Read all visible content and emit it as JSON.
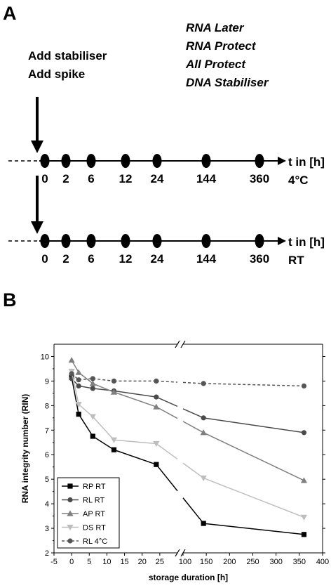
{
  "panel_a": {
    "letter": "A",
    "actions": [
      "Add stabiliser",
      "Add spike"
    ],
    "stabilisers": [
      "RNA Later",
      "RNA Protect",
      "All Protect",
      "DNA Stabiliser"
    ],
    "timelines": [
      {
        "axis_label": "t in [h]",
        "condition": "4°C",
        "points": [
          "0",
          "2",
          "6",
          "12",
          "24",
          "144",
          "360"
        ]
      },
      {
        "axis_label": "t in [h]",
        "condition": "RT",
        "points": [
          "0",
          "2",
          "6",
          "12",
          "24",
          "144",
          "360"
        ]
      }
    ]
  },
  "panel_b": {
    "letter": "B"
  },
  "chart_data": {
    "type": "line",
    "xlabel": "storage duration [h]",
    "ylabel": "RNA integrity number (RIN)",
    "x_axis": "broken",
    "x_segment_1": {
      "range": [
        -5,
        30
      ],
      "ticks": [
        -5,
        0,
        5,
        10,
        15,
        20,
        25
      ]
    },
    "x_segment_2": {
      "range": [
        100,
        400
      ],
      "ticks": [
        100,
        150,
        200,
        250,
        300,
        350,
        400
      ]
    },
    "ylim": [
      2,
      10.5
    ],
    "yticks": [
      2,
      3,
      4,
      5,
      6,
      7,
      8,
      9,
      10
    ],
    "legend_position": "bottom-left",
    "x": [
      0,
      2,
      6,
      12,
      24,
      144,
      360
    ],
    "series": [
      {
        "name": "RP RT",
        "marker": "square",
        "color": "#000000",
        "dash": false,
        "values": [
          9.15,
          7.65,
          6.75,
          6.2,
          5.6,
          3.2,
          2.75
        ]
      },
      {
        "name": "RL RT",
        "marker": "circle",
        "color": "#4a4a4a",
        "dash": false,
        "values": [
          9.1,
          8.8,
          8.7,
          8.6,
          8.35,
          7.5,
          6.9
        ]
      },
      {
        "name": "AP RT",
        "marker": "triangle-up",
        "color": "#7f7f7f",
        "dash": false,
        "values": [
          9.85,
          9.35,
          8.9,
          8.55,
          7.95,
          6.9,
          4.95
        ]
      },
      {
        "name": "DS RT",
        "marker": "triangle-down",
        "color": "#bdbdbd",
        "dash": false,
        "values": [
          9.4,
          8.05,
          7.55,
          6.6,
          6.45,
          5.05,
          3.45
        ]
      },
      {
        "name": "RL 4°C",
        "marker": "circle",
        "color": "#555555",
        "dash": true,
        "values": [
          9.3,
          9.05,
          9.1,
          9.0,
          9.0,
          8.9,
          8.8
        ]
      }
    ]
  }
}
